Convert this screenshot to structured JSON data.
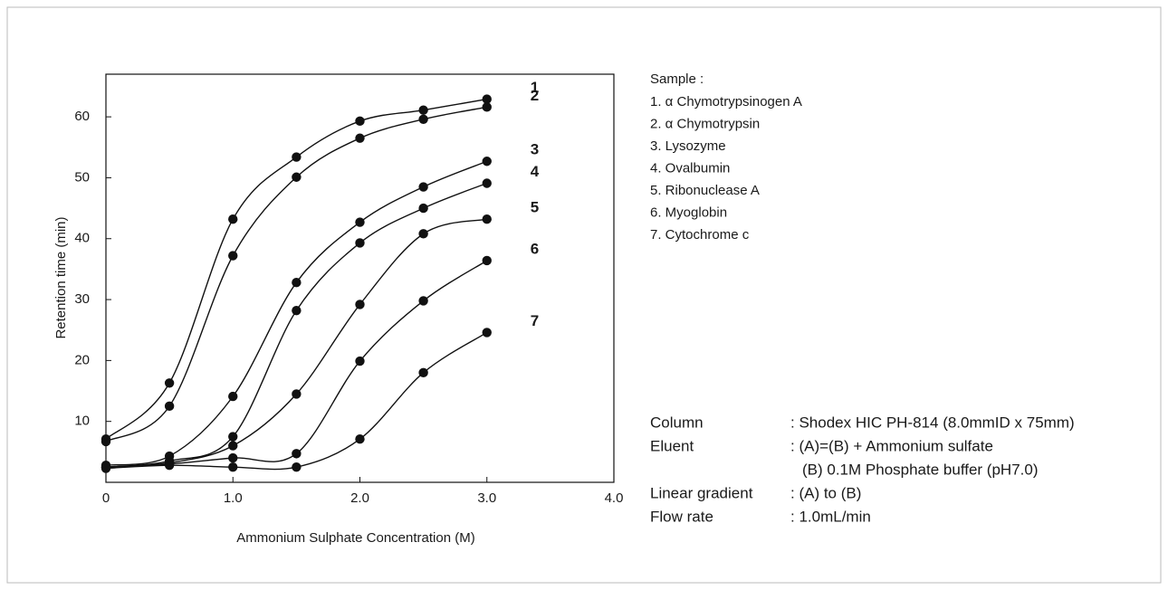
{
  "chart_data": {
    "type": "line",
    "xlabel": "Ammonium Sulphate Concentration (M)",
    "ylabel": "Retention time (min)",
    "x": [
      0,
      0.5,
      1.0,
      1.5,
      2.0,
      2.5,
      3.0
    ],
    "xlim": [
      0,
      4.0
    ],
    "xticks": [
      0,
      {
        "value": 1,
        "label": "1.0"
      },
      {
        "value": 2,
        "label": "2.0"
      },
      {
        "value": 3,
        "label": "3.0"
      },
      {
        "value": 4,
        "label": "4.0"
      }
    ],
    "ylim": [
      0,
      67
    ],
    "yticks": [
      10,
      20,
      30,
      40,
      50,
      60
    ],
    "grid": false,
    "markers": true,
    "series": [
      {
        "name": "1",
        "color": "#111111",
        "values": [
          7.1,
          16.3,
          43.2,
          53.4,
          59.3,
          61.1,
          62.9
        ]
      },
      {
        "name": "2",
        "color": "#111111",
        "values": [
          6.7,
          12.5,
          37.2,
          50.1,
          56.5,
          59.6,
          61.6
        ]
      },
      {
        "name": "3",
        "color": "#111111",
        "values": [
          2.8,
          4.3,
          14.1,
          32.8,
          42.7,
          48.5,
          52.7
        ]
      },
      {
        "name": "4",
        "color": "#111111",
        "values": [
          2.5,
          3.5,
          7.5,
          28.2,
          39.3,
          45.0,
          49.1
        ]
      },
      {
        "name": "5",
        "color": "#111111",
        "values": [
          2.5,
          3.2,
          6.0,
          14.5,
          29.2,
          40.8,
          43.2
        ]
      },
      {
        "name": "6",
        "color": "#111111",
        "values": [
          2.5,
          3.0,
          4.0,
          4.7,
          19.9,
          29.8,
          36.4
        ]
      },
      {
        "name": "7",
        "color": "#111111",
        "values": [
          2.3,
          2.8,
          2.5,
          2.5,
          7.1,
          18.0,
          24.6
        ]
      }
    ],
    "sample_title": "Sample :",
    "samples": [
      "1. α Chymotrypsinogen A",
      "2. α Chymotrypsin",
      "3. Lysozyme",
      "4. Ovalbumin",
      "5. Ribonuclease A",
      "6. Myoglobin",
      "7. Cytochrome c"
    ],
    "conditions": [
      {
        "label": "Column",
        "value": ": Shodex HIC PH-814 (8.0mmID x 75mm)"
      },
      {
        "label": "Eluent",
        "value": ": (A)=(B) + Ammonium sulfate"
      },
      {
        "value": "(B)  0.1M Phosphate buffer (pH7.0)"
      },
      {
        "label": "Linear gradient",
        "value": ": (A) to (B)"
      },
      {
        "label": "Flow rate",
        "value": ": 1.0mL/min"
      }
    ]
  }
}
